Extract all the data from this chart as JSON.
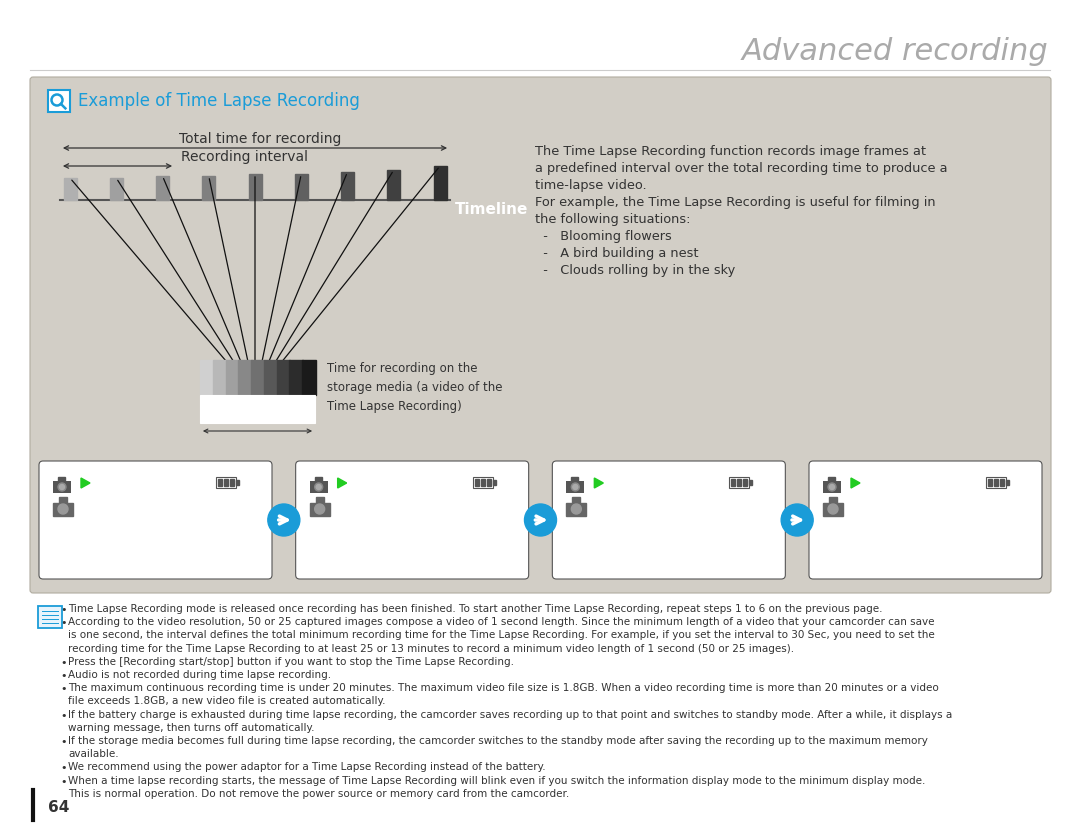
{
  "title": "Advanced recording",
  "page_bg": "#ffffff",
  "box_bg": "#d2cec6",
  "box_border": "#b0aca0",
  "section_title": "Example of Time Lapse Recording",
  "section_title_color": "#1a9cd8",
  "total_time_label": "Total time for recording",
  "interval_label": "Recording interval",
  "timeline_label": "Timeline",
  "timeline_color": "#ffffff",
  "storage_label": "Time for recording on the\nstorage media (a video of the\nTime Lapse Recording)",
  "desc_line1": "The Time Lapse Recording function records image frames at",
  "desc_line2": "a predefined interval over the total recording time to produce a",
  "desc_line3": "time-lapse video.",
  "desc_line4": "For example, the Time Lapse Recording is useful for filming in",
  "desc_line5": "the following situations:",
  "desc_line6": "  -   Blooming flowers",
  "desc_line7": "  -   A bird building a nest",
  "desc_line8": "  -   Clouds rolling by in the sky",
  "note_lines": [
    "Time Lapse Recording mode is released once recording has been finished. To start another Time Lapse Recording, repeat steps 1 to 6 on the previous page.",
    "According to the video resolution, 50 or 25 captured images compose a video of 1 second length. Since the minimum length of a video that your camcorder can save",
    "is one second, the interval defines the total minimum recording time for the Time Lapse Recording. For example, if you set the interval to 30 Sec, you need to set the",
    "recording time for the Time Lapse Recording to at least 25 or 13 minutes to record a minimum video length of 1 second (50 or 25 images).",
    "Press the [Recording start/stop] button if you want to stop the Time Lapse Recording.",
    "Audio is not recorded during time lapse recording.",
    "The maximum continuous recording time is under 20 minutes. The maximum video file size is 1.8GB. When a video recording time is more than 20 minutes or a video",
    "file exceeds 1.8GB, a new video file is created automatically.",
    "If the battery charge is exhausted during time lapse recording, the camcorder saves recording up to that point and switches to standby mode. After a while, it displays a",
    "warning message, then turns off automatically.",
    "If the storage media becomes full during time lapse recording, the camcorder switches to the standby mode after saving the recording up to the maximum memory",
    "available.",
    "We recommend using the power adaptor for a Time Lapse Recording instead of the battery.",
    "When a time lapse recording starts, the message of Time Lapse Recording will blink even if you switch the information display mode to the minimum display mode.",
    "This is normal operation. Do not remove the power source or memory card from the camcorder."
  ],
  "note_bullets": [
    true,
    true,
    false,
    false,
    true,
    true,
    true,
    false,
    true,
    false,
    true,
    false,
    true,
    true,
    false
  ],
  "page_number": "64",
  "arrow_color": "#1a9cd8",
  "text_color": "#333333"
}
